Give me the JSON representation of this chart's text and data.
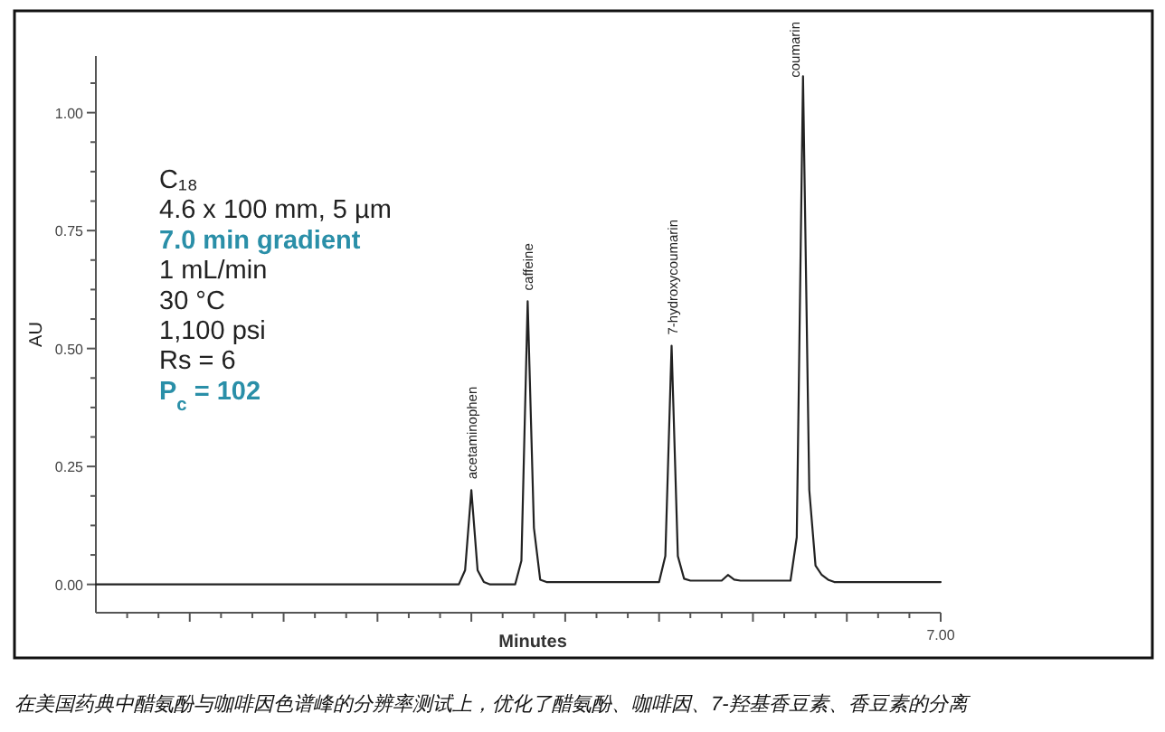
{
  "chart_data": {
    "type": "line",
    "ylabel": "AU",
    "xlabel": "Minutes",
    "ylim": [
      -0.06,
      1.12
    ],
    "yticks": [
      {
        "value": 0,
        "label": "0.00"
      },
      {
        "value": 0.0625,
        "label": null
      },
      {
        "value": 0.125,
        "label": null
      },
      {
        "value": 0.1875,
        "label": null
      },
      {
        "value": 0.25,
        "label": "0.25"
      },
      {
        "value": 0.3125,
        "label": null
      },
      {
        "value": 0.375,
        "label": null
      },
      {
        "value": 0.4375,
        "label": null
      },
      {
        "value": 0.5,
        "label": "0.50"
      },
      {
        "value": 0.5625,
        "label": null
      },
      {
        "value": 0.625,
        "label": null
      },
      {
        "value": 0.6875,
        "label": null
      },
      {
        "value": 0.75,
        "label": "0.75"
      },
      {
        "value": 0.8125,
        "label": null
      },
      {
        "value": 0.875,
        "label": null
      },
      {
        "value": 0.9375,
        "label": null
      },
      {
        "value": 1.0,
        "label": "1.00"
      },
      {
        "value": 1.0625,
        "label": null
      }
    ],
    "grid": false,
    "categories": [
      null,
      null,
      null,
      null,
      null,
      null,
      null,
      null,
      null,
      null,
      null,
      null,
      null,
      null,
      null,
      null,
      null,
      null,
      null,
      null,
      null,
      null,
      null,
      null,
      null,
      null,
      null,
      null,
      null,
      null,
      null,
      null,
      null,
      null,
      null,
      null,
      null,
      null,
      null,
      null,
      null,
      null,
      null,
      null,
      null,
      null,
      null,
      null,
      null,
      null,
      null,
      null,
      null,
      null,
      null,
      null,
      null,
      null,
      null,
      null,
      null,
      null,
      null,
      null,
      null,
      null,
      null,
      null,
      null,
      null,
      null,
      null,
      null,
      null,
      null,
      null,
      null,
      null,
      null,
      null,
      null,
      null,
      null,
      null,
      null,
      null,
      null,
      null,
      null,
      null,
      null,
      null,
      null,
      null,
      null,
      null,
      null,
      null,
      null,
      null,
      null,
      null,
      null,
      null,
      null,
      null,
      null,
      null,
      null,
      null,
      null,
      null,
      null,
      null,
      null,
      null,
      null,
      null,
      null,
      null,
      null,
      null,
      null,
      null,
      null,
      null,
      null,
      null,
      null,
      null,
      null,
      null,
      null,
      null,
      null,
      "7.00"
    ],
    "series": [
      {
        "color": "#222222",
        "values": [
          0,
          0,
          0,
          0,
          0,
          0,
          0,
          0,
          0,
          0,
          0,
          0,
          0,
          0,
          0,
          0,
          0,
          0,
          0,
          0,
          0,
          0,
          0,
          0,
          0,
          0,
          0,
          0,
          0,
          0,
          0,
          0,
          0,
          0,
          0,
          0,
          0,
          0,
          0,
          0,
          0,
          0,
          0,
          0,
          0,
          0,
          0,
          0,
          0,
          0,
          0,
          0,
          0,
          0,
          0,
          0,
          0,
          0,
          0,
          0.03,
          0.2,
          0.03,
          0.005,
          0,
          0,
          0,
          0,
          0,
          0.05,
          0.6,
          0.12,
          0.01,
          0.005,
          0.005,
          0.005,
          0.005,
          0.005,
          0.005,
          0.005,
          0.005,
          0.005,
          0.005,
          0.005,
          0.005,
          0.005,
          0.005,
          0.005,
          0.005,
          0.005,
          0.005,
          0.005,
          0.06,
          0.506,
          0.06,
          0.012,
          0.008,
          0.008,
          0.008,
          0.008,
          0.008,
          0.008,
          0.02,
          0.01,
          0.008,
          0.008,
          0.008,
          0.008,
          0.008,
          0.008,
          0.008,
          0.008,
          0.008,
          0.1,
          1.077,
          0.2,
          0.04,
          0.02,
          0.01,
          0.005,
          0.005,
          0.005,
          0.005,
          0.005,
          0.005,
          0.005,
          0.005,
          0.005,
          0.005,
          0.005,
          0.005,
          0.005,
          0.005,
          0.005,
          0.005,
          0.005,
          0.005
        ]
      }
    ],
    "annotations": [
      "acetaminophen",
      "caffeine",
      "7-hydroxycoumarin",
      "coumarin",
      "C₁₈",
      "4.6 x 100 mm, 5 µm",
      "7.0 min gradient",
      "1 mL/min",
      "30 °C",
      "1,100 psi",
      "Rs = 6",
      "P$_{c}$ = 102",
      "在美国药典中醋氨酚与咖啡因色谱峰的分辨率测试上，优化了醋氨酚、咖啡因、7-羟基香豆素、香豆素的分离"
    ]
  }
}
